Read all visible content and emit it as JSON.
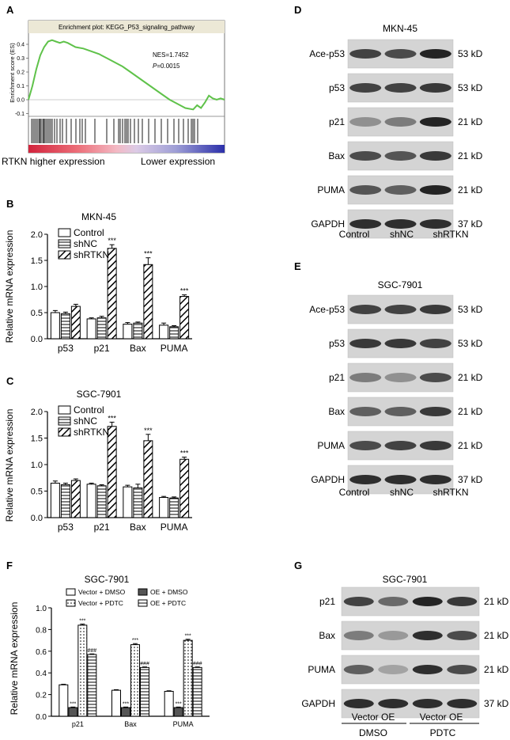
{
  "panels": {
    "A": {
      "letter": "A",
      "title": "Enrichment plot: KEGG_P53_signaling_pathway",
      "ylabel": "Enrichment score (ES)",
      "yticks": [
        "0.4",
        "0.3",
        "0.2",
        "0.1",
        "0.0",
        "-0.1"
      ],
      "nes": "NES=1.7452",
      "p_label": "P",
      "p_value": "=0.0015",
      "left_label": "RTKN higher expression",
      "right_label": "Lower expression"
    },
    "B": {
      "letter": "B",
      "title": "MKN-45",
      "ylabel": "Relative mRNA expression"
    },
    "C": {
      "letter": "C",
      "title": "SGC-7901",
      "ylabel": "Relative mRNA expression"
    },
    "F": {
      "letter": "F",
      "title": "SGC-7901",
      "ylabel": "Relative mRNA expression"
    },
    "D": {
      "letter": "D",
      "title": "MKN-45",
      "rows": [
        "Ace-p53",
        "p53",
        "p21",
        "Bax",
        "PUMA",
        "GAPDH"
      ],
      "sizes": [
        "53 kD",
        "53 kD",
        "21 kD",
        "21 kD",
        "21 kD",
        "37 kD"
      ],
      "lanes": [
        "Control",
        "shNC",
        "shRTKN"
      ]
    },
    "E": {
      "letter": "E",
      "title": "SGC-7901",
      "rows": [
        "Ace-p53",
        "p53",
        "p21",
        "Bax",
        "PUMA",
        "GAPDH"
      ],
      "sizes": [
        "53 kD",
        "53 kD",
        "21 kD",
        "21 kD",
        "21 kD",
        "37 kD"
      ],
      "lanes": [
        "Control",
        "shNC",
        "shRTKN"
      ]
    },
    "G": {
      "letter": "G",
      "title": "SGC-7901",
      "rows": [
        "p21",
        "Bax",
        "PUMA",
        "GAPDH"
      ],
      "sizes": [
        "21 kD",
        "21 kD",
        "21 kD",
        "37 kD"
      ],
      "lanes": [
        "Vector OE",
        "Vector OE"
      ],
      "groups": [
        "DMSO",
        "PDTC"
      ]
    }
  },
  "chart_data": [
    {
      "id": "B",
      "type": "bar",
      "title": "MKN-45",
      "ylabel": "Relative mRNA expression",
      "categories": [
        "p53",
        "p21",
        "Bax",
        "PUMA"
      ],
      "ylim": [
        0,
        2.0
      ],
      "yticks": [
        "0.0",
        "0.5",
        "1.0",
        "1.5",
        "2.0"
      ],
      "legend": "top-left",
      "series": [
        {
          "name": "Control",
          "values": [
            0.5,
            0.38,
            0.28,
            0.26
          ],
          "err": [
            0.04,
            0.02,
            0.03,
            0.04
          ],
          "sig": [
            "",
            "",
            "",
            ""
          ]
        },
        {
          "name": "shNC",
          "values": [
            0.48,
            0.4,
            0.3,
            0.23
          ],
          "err": [
            0.03,
            0.03,
            0.02,
            0.02
          ],
          "sig": [
            "",
            "",
            "",
            ""
          ]
        },
        {
          "name": "shRTKN",
          "values": [
            0.62,
            1.73,
            1.42,
            0.81
          ],
          "err": [
            0.04,
            0.07,
            0.13,
            0.03
          ],
          "sig": [
            "",
            "***",
            "***",
            "***"
          ]
        }
      ]
    },
    {
      "id": "C",
      "type": "bar",
      "title": "SGC-7901",
      "ylabel": "Relative mRNA expression",
      "categories": [
        "p53",
        "p21",
        "Bax",
        "PUMA"
      ],
      "ylim": [
        0,
        2.0
      ],
      "yticks": [
        "0.0",
        "0.5",
        "1.0",
        "1.5",
        "2.0"
      ],
      "legend": "top-left",
      "series": [
        {
          "name": "Control",
          "values": [
            0.65,
            0.63,
            0.58,
            0.38
          ],
          "err": [
            0.04,
            0.02,
            0.03,
            0.02
          ],
          "sig": [
            "",
            "",
            "",
            ""
          ]
        },
        {
          "name": "shNC",
          "values": [
            0.62,
            0.6,
            0.56,
            0.37
          ],
          "err": [
            0.03,
            0.02,
            0.07,
            0.02
          ],
          "sig": [
            "",
            "",
            "",
            ""
          ]
        },
        {
          "name": "shRTKN",
          "values": [
            0.7,
            1.72,
            1.45,
            1.1
          ],
          "err": [
            0.03,
            0.08,
            0.12,
            0.04
          ],
          "sig": [
            "",
            "***",
            "***",
            "***"
          ]
        }
      ]
    },
    {
      "id": "F",
      "type": "bar",
      "title": "SGC-7901",
      "ylabel": "Relative mRNA expression",
      "categories": [
        "p21",
        "Bax",
        "PUMA"
      ],
      "ylim": [
        0,
        1.0
      ],
      "yticks": [
        "0.0",
        "0.2",
        "0.4",
        "0.6",
        "0.8",
        "1.0"
      ],
      "legend": "top",
      "series": [
        {
          "name": "Vector + DMSO",
          "values": [
            0.29,
            0.24,
            0.23
          ],
          "err": [
            0.005,
            0.005,
            0.005
          ],
          "sig": [
            "",
            "",
            ""
          ]
        },
        {
          "name": "OE + DMSO",
          "values": [
            0.08,
            0.08,
            0.08
          ],
          "err": [
            0.005,
            0.005,
            0.005
          ],
          "sig": [
            "***",
            "***",
            "***"
          ]
        },
        {
          "name": "Vector + PDTC",
          "values": [
            0.84,
            0.66,
            0.7
          ],
          "err": [
            0.01,
            0.01,
            0.01
          ],
          "sig": [
            "***",
            "***",
            "***"
          ]
        },
        {
          "name": "OE + PDTC",
          "values": [
            0.57,
            0.45,
            0.45
          ],
          "err": [
            0.005,
            0.005,
            0.005
          ],
          "sig": [
            "###",
            "###",
            "###"
          ]
        }
      ]
    },
    {
      "id": "A",
      "type": "line",
      "title": "Enrichment plot: KEGG_P53_signaling_pathway",
      "ylabel": "Enrichment score (ES)",
      "ylim": [
        -0.12,
        0.48
      ],
      "x": [
        0,
        0.02,
        0.04,
        0.06,
        0.08,
        0.1,
        0.12,
        0.14,
        0.16,
        0.18,
        0.2,
        0.24,
        0.28,
        0.32,
        0.36,
        0.4,
        0.44,
        0.48,
        0.52,
        0.56,
        0.6,
        0.64,
        0.68,
        0.72,
        0.76,
        0.8,
        0.84,
        0.86,
        0.88,
        0.9,
        0.92,
        0.94,
        0.96,
        0.98,
        1.0
      ],
      "y": [
        0.0,
        0.1,
        0.22,
        0.32,
        0.38,
        0.42,
        0.43,
        0.42,
        0.41,
        0.42,
        0.41,
        0.38,
        0.37,
        0.35,
        0.33,
        0.3,
        0.27,
        0.24,
        0.2,
        0.16,
        0.12,
        0.08,
        0.04,
        0.0,
        -0.03,
        -0.06,
        -0.07,
        -0.04,
        -0.06,
        -0.02,
        0.03,
        0.01,
        0.0,
        0.01,
        0.0
      ]
    }
  ]
}
